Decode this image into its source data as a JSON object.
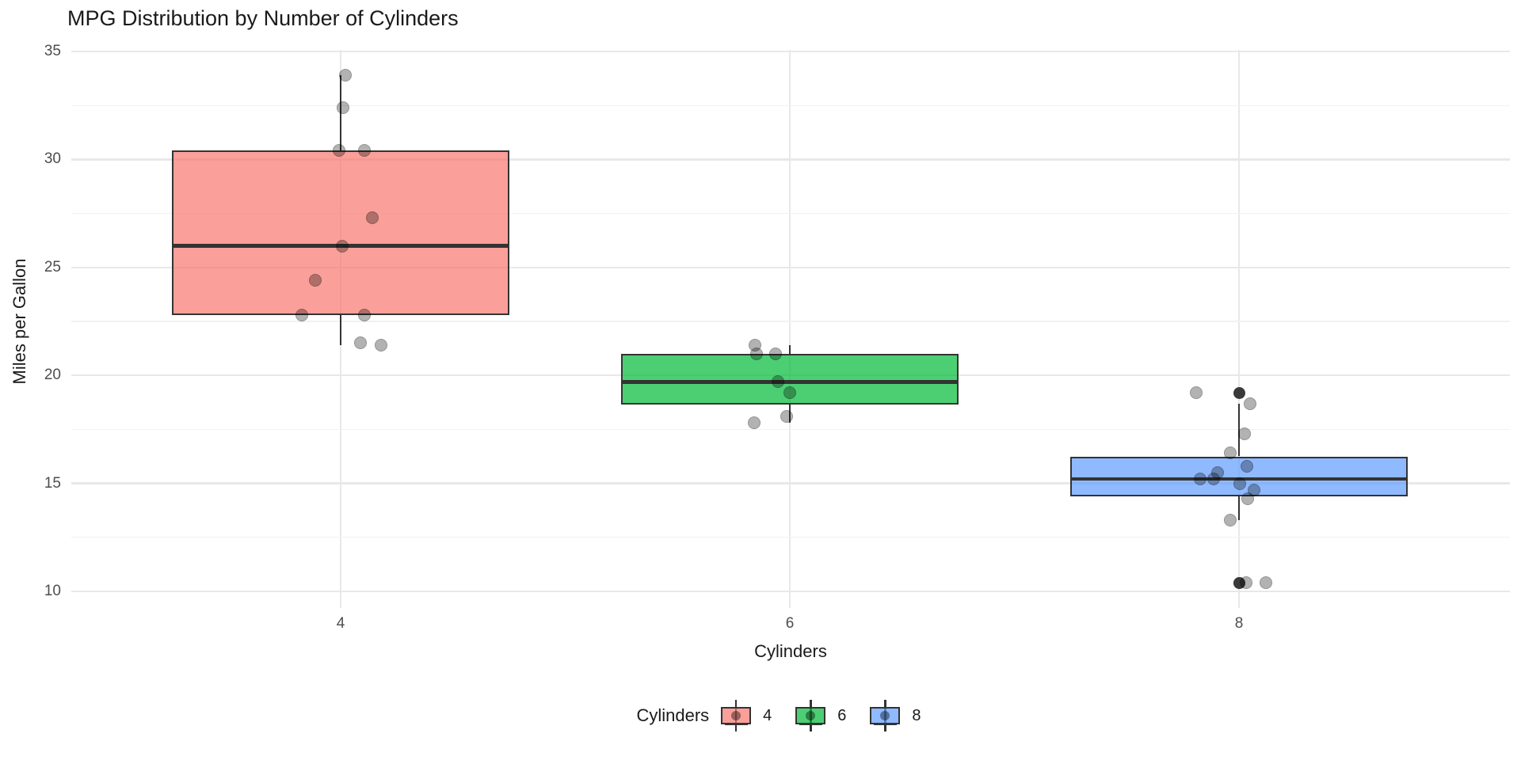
{
  "chart_data": {
    "type": "boxplot",
    "title": "MPG Distribution by Number of Cylinders",
    "xlabel": "Cylinders",
    "ylabel": "Miles per Gallon",
    "categories": [
      "4",
      "6",
      "8"
    ],
    "y_ticks": [
      35,
      30,
      25,
      20,
      15,
      10
    ],
    "y_minor_ticks": [
      32.5,
      27.5,
      22.5,
      17.5,
      12.5
    ],
    "ylim": [
      9.2,
      35.1
    ],
    "grid": true,
    "legend": {
      "title": "Cylinders",
      "position": "bottom",
      "entries": [
        {
          "label": "4",
          "color": "#F8766D"
        },
        {
          "label": "6",
          "color": "#00BA38"
        },
        {
          "label": "8",
          "color": "#619CFF"
        }
      ]
    },
    "colors": {
      "box_border": "#333333",
      "grid_major": "#E8E8E8",
      "grid_minor": "#F1F1F1",
      "tick_text": "#4D4D4D",
      "title_text": "#1A1A1A",
      "fill_alpha": 0.7
    },
    "series": [
      {
        "name": "4",
        "color": "#F8766D",
        "stats": {
          "whisker_low": 21.4,
          "q1": 22.8,
          "median": 26.0,
          "q3": 30.4,
          "whisker_high": 33.9
        },
        "outliers": [],
        "points": [
          {
            "mpg": 33.9,
            "dx": 6
          },
          {
            "mpg": 32.4,
            "dx": 3
          },
          {
            "mpg": 30.4,
            "dx": -2
          },
          {
            "mpg": 30.4,
            "dx": 30
          },
          {
            "mpg": 27.3,
            "dx": 40
          },
          {
            "mpg": 26.0,
            "dx": 2
          },
          {
            "mpg": 24.4,
            "dx": -32
          },
          {
            "mpg": 22.8,
            "dx": -49
          },
          {
            "mpg": 22.8,
            "dx": 30
          },
          {
            "mpg": 21.5,
            "dx": 25
          },
          {
            "mpg": 21.4,
            "dx": 51
          }
        ]
      },
      {
        "name": "6",
        "color": "#00BA38",
        "stats": {
          "whisker_low": 17.8,
          "q1": 18.65,
          "median": 19.7,
          "q3": 21.0,
          "whisker_high": 21.4
        },
        "outliers": [],
        "points": [
          {
            "mpg": 21.4,
            "dx": -44
          },
          {
            "mpg": 21.0,
            "dx": -42
          },
          {
            "mpg": 21.0,
            "dx": -18
          },
          {
            "mpg": 19.7,
            "dx": -15
          },
          {
            "mpg": 19.2,
            "dx": 0
          },
          {
            "mpg": 18.1,
            "dx": -4
          },
          {
            "mpg": 17.8,
            "dx": -45
          }
        ]
      },
      {
        "name": "8",
        "color": "#619CFF",
        "stats": {
          "whisker_low": 13.3,
          "q1": 14.4,
          "median": 15.2,
          "q3": 16.25,
          "whisker_high": 18.7
        },
        "outliers": [
          19.2,
          10.4,
          10.4
        ],
        "points": [
          {
            "mpg": 19.2,
            "dx": -54
          },
          {
            "mpg": 18.7,
            "dx": 14
          },
          {
            "mpg": 17.3,
            "dx": 7
          },
          {
            "mpg": 16.4,
            "dx": -11
          },
          {
            "mpg": 15.8,
            "dx": 10
          },
          {
            "mpg": 15.5,
            "dx": -27
          },
          {
            "mpg": 15.2,
            "dx": -49
          },
          {
            "mpg": 15.2,
            "dx": -32
          },
          {
            "mpg": 15.0,
            "dx": 1
          },
          {
            "mpg": 14.7,
            "dx": 19
          },
          {
            "mpg": 14.3,
            "dx": 11
          },
          {
            "mpg": 13.3,
            "dx": -11
          },
          {
            "mpg": 10.4,
            "dx": 9
          },
          {
            "mpg": 10.4,
            "dx": 34
          }
        ]
      }
    ]
  }
}
